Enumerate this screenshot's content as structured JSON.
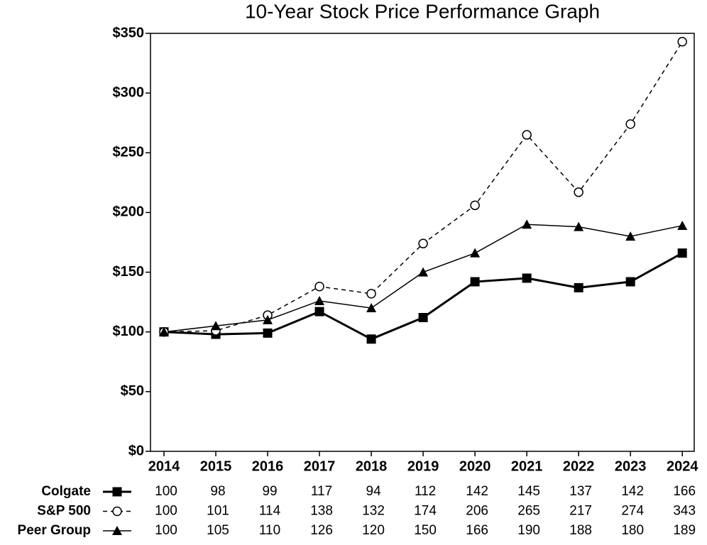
{
  "chart_data": {
    "type": "line",
    "title": "10-Year Stock Price Performance Graph",
    "x": [
      2014,
      2015,
      2016,
      2017,
      2018,
      2019,
      2020,
      2021,
      2022,
      2023,
      2024
    ],
    "xlim": [
      2013.74,
      2024.23
    ],
    "xticks": [
      2014,
      2015,
      2016,
      2017,
      2018,
      2019,
      2020,
      2021,
      2022,
      2023,
      2024
    ],
    "ylim": [
      0,
      350
    ],
    "yticks": [
      {
        "value": 0,
        "label": "$0"
      },
      {
        "value": 50,
        "label": "$50"
      },
      {
        "value": 100,
        "label": "$100"
      },
      {
        "value": 150,
        "label": "$150"
      },
      {
        "value": 200,
        "label": "$200"
      },
      {
        "value": 250,
        "label": "$250"
      },
      {
        "value": 300,
        "label": "$300"
      },
      {
        "value": 350,
        "label": "$350"
      }
    ],
    "grid": false,
    "series": [
      {
        "name": "Colgate",
        "color": "#000000",
        "marker": "square",
        "line_style": "solid",
        "line_width": 3,
        "values": [
          100,
          98,
          99,
          117,
          94,
          112,
          142,
          145,
          137,
          142,
          166
        ]
      },
      {
        "name": "S&P 500",
        "color": "#000000",
        "marker": "circle",
        "line_style": "dashed",
        "line_width": 1.5,
        "values": [
          100,
          101,
          114,
          138,
          132,
          174,
          206,
          265,
          217,
          274,
          343
        ]
      },
      {
        "name": "Peer Group",
        "color": "#000000",
        "marker": "triangle",
        "line_style": "solid",
        "line_width": 1.5,
        "values": [
          100,
          105,
          110,
          126,
          120,
          150,
          166,
          190,
          188,
          180,
          189
        ]
      }
    ]
  }
}
